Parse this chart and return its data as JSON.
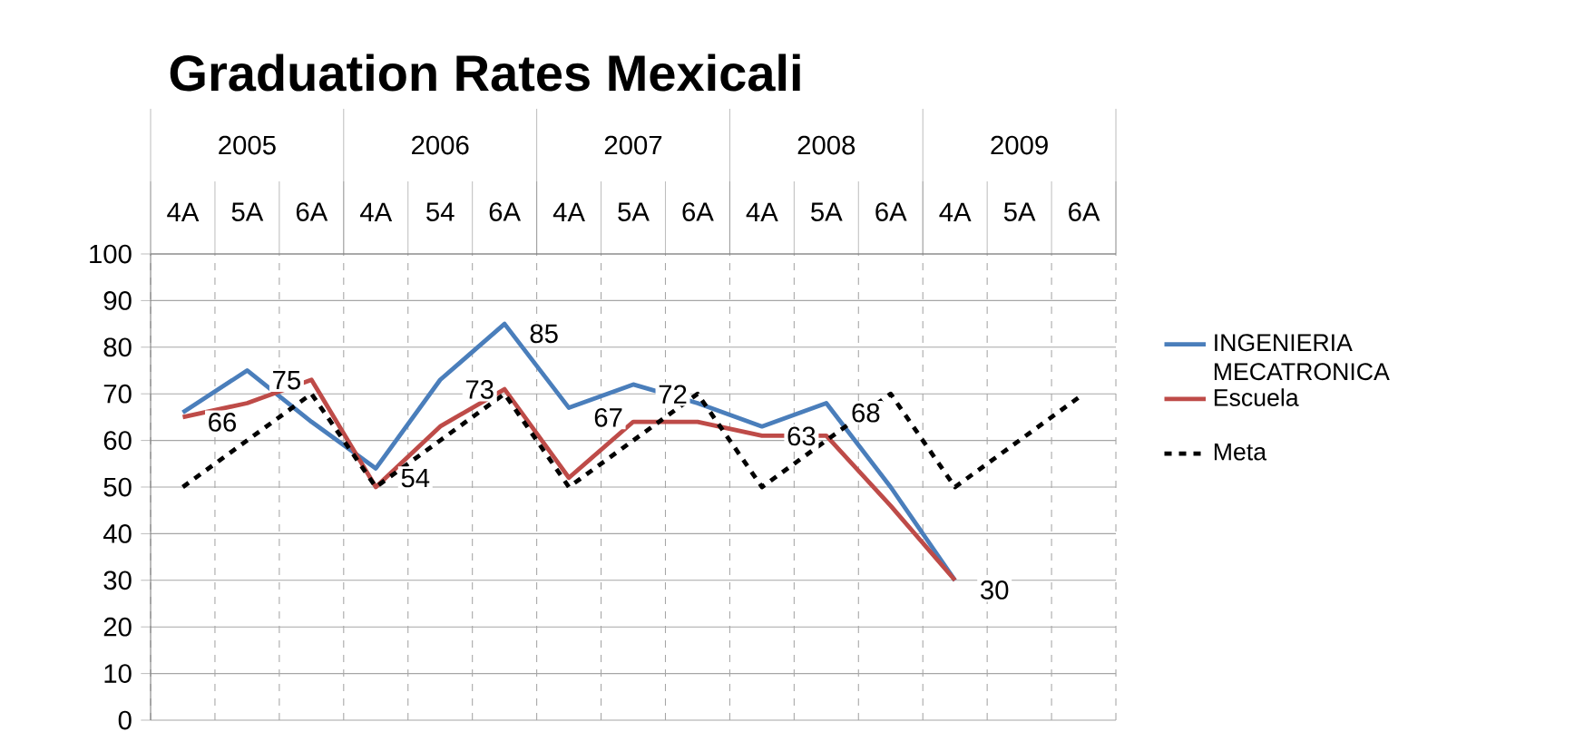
{
  "chart_data": {
    "type": "line",
    "title": "Graduation Rates Mexicali",
    "categories": [
      "4A",
      "5A",
      "6A",
      "4A",
      "54",
      "6A",
      "4A",
      "5A",
      "6A",
      "4A",
      "5A",
      "6A",
      "4A",
      "5A",
      "6A"
    ],
    "annotations": [
      "2005",
      "2006",
      "2007",
      "2008",
      "2009"
    ],
    "ylim": [
      0,
      100
    ],
    "yticks": [
      0,
      10,
      20,
      30,
      40,
      50,
      60,
      70,
      80,
      90,
      100
    ],
    "grid": true,
    "legend": "right",
    "series": [
      {
        "name": "INGENIERIA MECATRONICA",
        "color": "#4a7ebb",
        "line_style": "solid",
        "values": [
          66,
          75,
          64,
          54,
          73,
          85,
          67,
          72,
          68,
          63,
          68,
          50,
          30,
          null,
          null
        ],
        "value_labels": [
          "66",
          "75",
          null,
          "54",
          "73",
          "85",
          "67",
          "72",
          null,
          "63",
          "68",
          null,
          "30",
          null,
          null
        ]
      },
      {
        "name": "Escuela",
        "color": "#be4b48",
        "line_style": "solid",
        "values": [
          65,
          68,
          73,
          50,
          63,
          71,
          52,
          64,
          64,
          61,
          61,
          46,
          30,
          null,
          null
        ]
      },
      {
        "name": "Meta",
        "color": "#000000",
        "line_style": "dashed",
        "values": [
          50,
          60,
          70,
          50,
          60,
          70,
          50,
          60,
          70,
          50,
          60,
          70,
          50,
          60,
          70
        ]
      }
    ]
  }
}
